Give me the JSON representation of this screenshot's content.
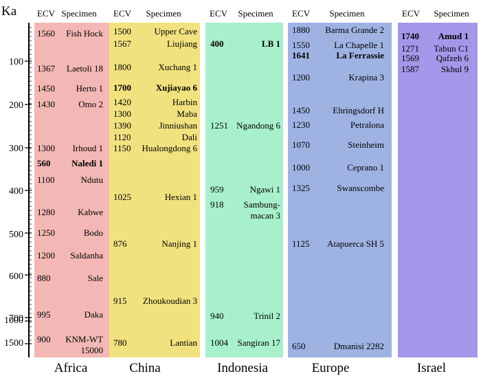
{
  "chart_data": {
    "type": "table",
    "y_axis": {
      "unit_label": "Ka",
      "ticks": [
        "100",
        "200",
        "300",
        "400",
        "500",
        "600",
        "700",
        "1000",
        "1500"
      ]
    },
    "column_headers": {
      "ecv": "ECV",
      "specimen": "Specimen"
    },
    "regions": [
      {
        "name": "Africa",
        "color": "#f3b8b5",
        "specimens": [
          {
            "ecv": "1560",
            "specimen": "Fish Hock",
            "bold": false
          },
          {
            "ecv": "1367",
            "specimen": "Laetoli 18",
            "bold": false
          },
          {
            "ecv": "1450",
            "specimen": "Herto 1",
            "bold": false
          },
          {
            "ecv": "1430",
            "specimen": "Omo 2",
            "bold": false
          },
          {
            "ecv": "1300",
            "specimen": "Irhoud 1",
            "bold": false
          },
          {
            "ecv": "560",
            "specimen": "Naledi 1",
            "bold": true
          },
          {
            "ecv": "1100",
            "specimen": "Ndutu",
            "bold": false
          },
          {
            "ecv": "1280",
            "specimen": "Kabwe",
            "bold": false
          },
          {
            "ecv": "1250",
            "specimen": "Bodo",
            "bold": false
          },
          {
            "ecv": "1200",
            "specimen": "Saldanha",
            "bold": false
          },
          {
            "ecv": "880",
            "specimen": "Sale",
            "bold": false
          },
          {
            "ecv": "995",
            "specimen": "Daka",
            "bold": false
          },
          {
            "ecv": "900",
            "specimen": "KNM-WT",
            "specimen_line2": "15000",
            "bold": false
          }
        ]
      },
      {
        "name": "China",
        "color": "#f2e27f",
        "specimens": [
          {
            "ecv": "1500",
            "specimen": "Upper Cave",
            "bold": false
          },
          {
            "ecv": "1567",
            "specimen": "Liujiang",
            "bold": false
          },
          {
            "ecv": "1800",
            "specimen": "Xuchang 1",
            "bold": false
          },
          {
            "ecv": "1700",
            "specimen": "Xujiayao 6",
            "bold": true
          },
          {
            "ecv": "1420",
            "specimen": "Harbin",
            "bold": false
          },
          {
            "ecv": "1300",
            "specimen": "Maba",
            "bold": false
          },
          {
            "ecv": "1390",
            "specimen": "Jinniushan",
            "bold": false
          },
          {
            "ecv": "1120",
            "specimen": "Dali",
            "bold": false
          },
          {
            "ecv": "1150",
            "specimen": "Hualongdong 6",
            "bold": false
          },
          {
            "ecv": "1025",
            "specimen": "Hexian 1",
            "bold": false
          },
          {
            "ecv": "876",
            "specimen": "Nanjing 1",
            "bold": false
          },
          {
            "ecv": "915",
            "specimen": "Zhoukoudian 3",
            "bold": false
          },
          {
            "ecv": "780",
            "specimen": "Lantian",
            "bold": false
          }
        ]
      },
      {
        "name": "Indonesia",
        "color": "#a8f0cc",
        "specimens": [
          {
            "ecv": "400",
            "specimen": "LB 1",
            "bold": true
          },
          {
            "ecv": "1251",
            "specimen": "Ngandong 6",
            "bold": false
          },
          {
            "ecv": "959",
            "specimen": "Ngawi 1",
            "bold": false
          },
          {
            "ecv": "918",
            "specimen": "Sambung-",
            "specimen_line2": "macan 3",
            "bold": false
          },
          {
            "ecv": "940",
            "specimen": "Trinil 2",
            "bold": false
          },
          {
            "ecv": "1004",
            "specimen": "Sangiran 17",
            "bold": false
          }
        ]
      },
      {
        "name": "Europe",
        "color": "#9fb3e3",
        "specimens": [
          {
            "ecv": "1880",
            "specimen": "Barma Grande 2",
            "bold": false
          },
          {
            "ecv": "1550",
            "specimen": "La Chapelle 1",
            "bold": false
          },
          {
            "ecv": "1641",
            "specimen": "La Ferrassie",
            "bold": true
          },
          {
            "ecv": "1200",
            "specimen": "Krapina 3",
            "bold": false
          },
          {
            "ecv": "1450",
            "specimen": "Ehringsdorf H",
            "bold": false
          },
          {
            "ecv": "1230",
            "specimen": "Petralona",
            "bold": false
          },
          {
            "ecv": "1070",
            "specimen": "Steinheim",
            "bold": false
          },
          {
            "ecv": "1000",
            "specimen": "Ceprano 1",
            "bold": false
          },
          {
            "ecv": "1325",
            "specimen": "Swanscombe",
            "bold": false
          },
          {
            "ecv": "1125",
            "specimen": "Atapuerca SH 5",
            "bold": false
          },
          {
            "ecv": "650",
            "specimen": "Dmanisi 2282",
            "bold": false
          }
        ]
      },
      {
        "name": "Israel",
        "color": "#a497ea",
        "specimens": [
          {
            "ecv": "1740",
            "specimen": "Amud 1",
            "bold": true
          },
          {
            "ecv": "1271",
            "specimen": "Tabun C1",
            "bold": false
          },
          {
            "ecv": "1569",
            "specimen": "Qafzeh 6",
            "bold": false
          },
          {
            "ecv": "1587",
            "specimen": "Skhul 9",
            "bold": false
          }
        ]
      }
    ]
  }
}
